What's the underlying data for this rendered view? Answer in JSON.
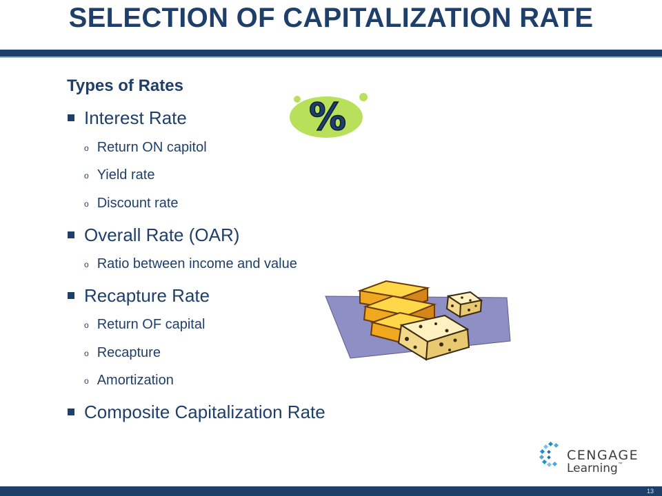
{
  "slide": {
    "title": "SELECTION OF CAPITALIZATION RATE",
    "subtitle": "Types of Rates",
    "page_number": "13"
  },
  "sections": [
    {
      "label": "Interest Rate",
      "items": [
        "Return ON capitol",
        "Yield rate",
        "Discount rate"
      ]
    },
    {
      "label": "Overall Rate (OAR)",
      "items": [
        "Ratio between income and value"
      ]
    },
    {
      "label": "Recapture Rate",
      "items": [
        "Return OF capital",
        "Recapture",
        "Amortization"
      ]
    },
    {
      "label": "Composite Capitalization Rate",
      "items": []
    }
  ],
  "clipart": {
    "percent_symbol": "%"
  },
  "logo": {
    "word": "CENGAGE",
    "sub": "Learning",
    "tm": "™"
  },
  "colors": {
    "primary": "#1f3f6b",
    "accent_green": "#b8e05a",
    "gold": "#f0a81e"
  }
}
